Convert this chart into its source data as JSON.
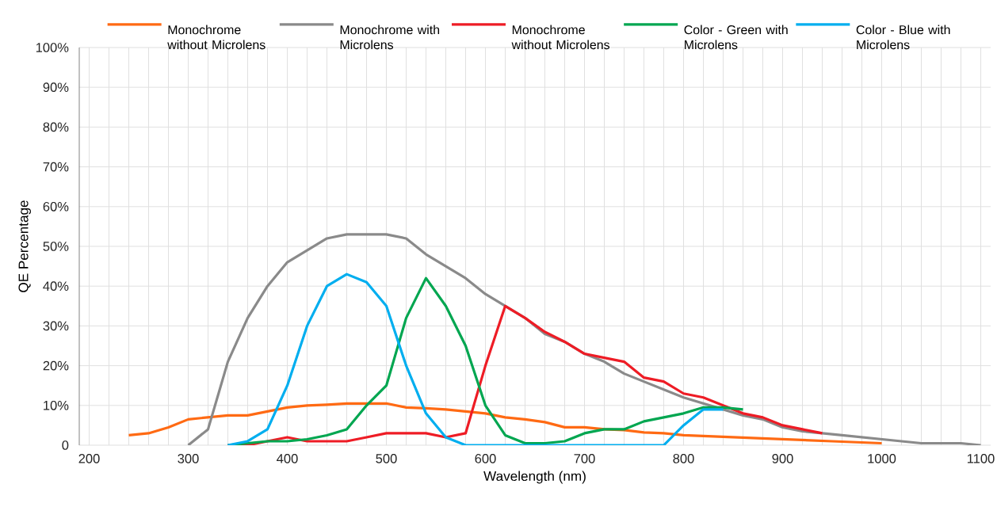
{
  "chart_data": {
    "type": "line",
    "xlabel": "Wavelength (nm)",
    "ylabel": "QE Percentage",
    "xlim": [
      190,
      1110
    ],
    "ylim": [
      0,
      100
    ],
    "xticks": [
      200,
      300,
      400,
      500,
      600,
      700,
      800,
      900,
      1000,
      1100
    ],
    "yticks": [
      {
        "value": 0,
        "label": "0"
      },
      {
        "value": 10,
        "label": "10%"
      },
      {
        "value": 20,
        "label": "20%"
      },
      {
        "value": 30,
        "label": "30%"
      },
      {
        "value": 40,
        "label": "40%"
      },
      {
        "value": 50,
        "label": "50%"
      },
      {
        "value": 60,
        "label": "60%"
      },
      {
        "value": 70,
        "label": "70%"
      },
      {
        "value": 80,
        "label": "80%"
      },
      {
        "value": 90,
        "label": "90%"
      },
      {
        "value": 100,
        "label": "100%"
      }
    ],
    "grid": true,
    "legend": "top",
    "marker": "none",
    "line_style": "solid",
    "series": [
      {
        "name": "Monochrome without Microlens",
        "color": "#ff6a13",
        "x": [
          240,
          260,
          280,
          300,
          320,
          340,
          360,
          380,
          400,
          420,
          440,
          460,
          480,
          500,
          520,
          540,
          560,
          580,
          600,
          620,
          640,
          660,
          680,
          700,
          720,
          740,
          760,
          780,
          800,
          850,
          900,
          950,
          1000
        ],
        "values": [
          2.5,
          3,
          4.5,
          6.5,
          7,
          7.5,
          7.5,
          8.5,
          9.5,
          10,
          10.2,
          10.5,
          10.5,
          10.5,
          9.5,
          9.3,
          9,
          8.5,
          8,
          7,
          6.5,
          5.8,
          4.5,
          4.5,
          4,
          3.8,
          3.2,
          3,
          2.5,
          2,
          1.5,
          1,
          0.5
        ]
      },
      {
        "name": "Monochrome with Microlens",
        "color": "#8a8a8a",
        "x": [
          300,
          320,
          340,
          360,
          380,
          400,
          420,
          440,
          460,
          480,
          500,
          520,
          540,
          560,
          580,
          600,
          620,
          640,
          660,
          680,
          700,
          720,
          740,
          760,
          780,
          800,
          820,
          840,
          860,
          880,
          900,
          920,
          940,
          960,
          980,
          1000,
          1020,
          1040,
          1060,
          1080,
          1100
        ],
        "values": [
          0,
          4,
          21,
          32,
          40,
          46,
          49,
          52,
          53,
          53,
          53,
          52,
          48,
          45,
          42,
          38,
          35,
          32,
          28,
          26,
          23,
          21,
          18,
          16,
          14,
          12,
          10.5,
          9,
          7.5,
          6.5,
          4.5,
          3.5,
          3,
          2.5,
          2,
          1.5,
          1,
          0.5,
          0.5,
          0.5,
          0
        ]
      },
      {
        "name": "Monochrome without Microlens",
        "color": "#ee1c25",
        "x": [
          340,
          360,
          380,
          400,
          420,
          440,
          460,
          480,
          500,
          520,
          540,
          560,
          580,
          600,
          620,
          640,
          660,
          680,
          700,
          720,
          740,
          760,
          780,
          800,
          820,
          840,
          860,
          880,
          900,
          920,
          940
        ],
        "values": [
          0,
          0,
          1,
          2,
          1,
          1,
          1,
          2,
          3,
          3,
          3,
          2,
          3,
          20,
          35,
          32,
          28.5,
          26,
          23,
          22,
          21,
          17,
          16,
          13,
          12,
          10,
          8,
          7,
          5,
          4,
          3
        ]
      },
      {
        "name": "Color - Green with Microlens",
        "color": "#00a650",
        "x": [
          340,
          360,
          380,
          400,
          420,
          440,
          460,
          480,
          500,
          520,
          540,
          560,
          580,
          600,
          620,
          640,
          660,
          680,
          700,
          720,
          740,
          760,
          780,
          800,
          820,
          840,
          860
        ],
        "values": [
          0,
          0.5,
          1,
          1,
          1.5,
          2.5,
          4,
          10,
          15,
          32,
          42,
          35,
          25,
          10,
          2.5,
          0.5,
          0.5,
          1,
          3,
          4,
          4,
          6,
          7,
          8,
          9.5,
          9.5,
          9
        ]
      },
      {
        "name": "Color - Blue with Microlens",
        "color": "#00aeef",
        "x": [
          340,
          360,
          380,
          400,
          420,
          440,
          460,
          480,
          500,
          520,
          540,
          560,
          580,
          600,
          620,
          640,
          660,
          680,
          700,
          720,
          740,
          760,
          780,
          800,
          820,
          840
        ],
        "values": [
          0,
          1,
          4,
          15,
          30,
          40,
          43,
          41,
          35,
          20,
          8,
          2,
          0,
          0,
          0,
          0,
          0,
          0,
          0,
          0,
          0,
          0,
          0,
          5,
          9,
          9
        ]
      }
    ]
  }
}
